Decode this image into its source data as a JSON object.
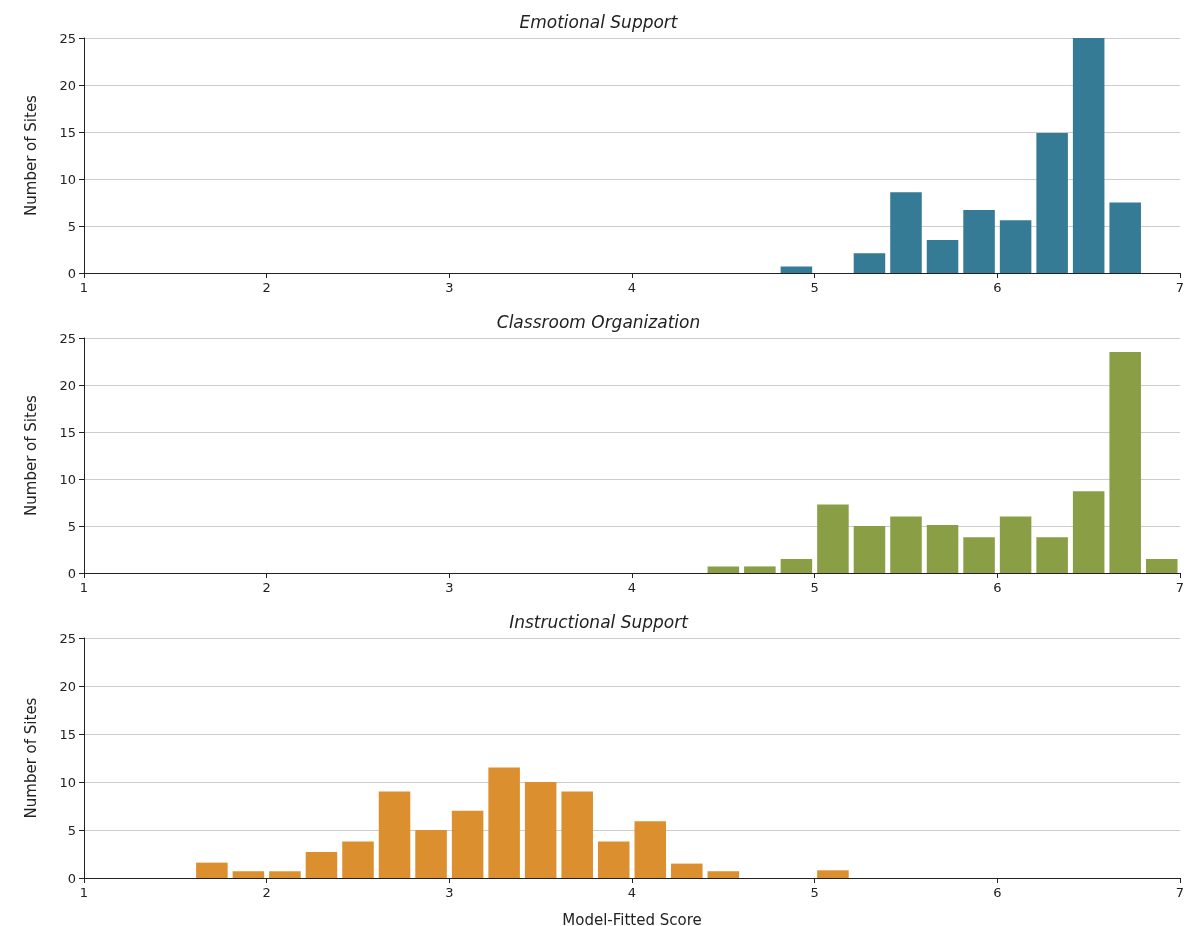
{
  "chart_data": [
    {
      "type": "histogram",
      "title": "Emotional Support",
      "ylabel": "Number of Sites",
      "color": "#357b95",
      "bins": [
        1,
        1.2,
        1.4,
        1.6,
        1.8,
        2,
        2.2,
        2.4,
        2.6,
        2.8,
        3,
        3.2,
        3.4,
        3.6,
        3.8,
        4,
        4.2,
        4.4,
        4.6,
        4.8,
        5,
        5.2,
        5.4,
        5.6,
        5.8,
        6,
        6.2,
        6.4,
        6.6,
        6.8,
        7
      ],
      "values": [
        0,
        0,
        0,
        0,
        0,
        0,
        0,
        0,
        0,
        0,
        0,
        0,
        0,
        0,
        0,
        0,
        0,
        0,
        0,
        0.7,
        0,
        2.1,
        8.6,
        3.5,
        6.7,
        5.6,
        14.9,
        25,
        7.5,
        0
      ],
      "xlim": [
        1,
        7
      ],
      "xticks": [
        1,
        2,
        3,
        4,
        5,
        6,
        7
      ],
      "ylim": [
        0,
        25
      ],
      "yticks": [
        0,
        5,
        10,
        15,
        20,
        25
      ],
      "grid": "y"
    },
    {
      "type": "histogram",
      "title": "Classroom Organization",
      "ylabel": "Number of Sites",
      "color": "#8a9e45",
      "bins": [
        1,
        1.2,
        1.4,
        1.6,
        1.8,
        2,
        2.2,
        2.4,
        2.6,
        2.8,
        3,
        3.2,
        3.4,
        3.6,
        3.8,
        4,
        4.2,
        4.4,
        4.6,
        4.8,
        5,
        5.2,
        5.4,
        5.6,
        5.8,
        6,
        6.2,
        6.4,
        6.6,
        6.8,
        7
      ],
      "values": [
        0,
        0,
        0,
        0,
        0,
        0,
        0,
        0,
        0,
        0,
        0,
        0,
        0,
        0,
        0,
        0,
        0,
        0.7,
        0.7,
        1.5,
        7.3,
        5,
        6,
        5.1,
        3.8,
        6,
        3.8,
        8.7,
        23.5,
        1.5
      ],
      "xlim": [
        1,
        7
      ],
      "xticks": [
        1,
        2,
        3,
        4,
        5,
        6,
        7
      ],
      "ylim": [
        0,
        25
      ],
      "yticks": [
        0,
        5,
        10,
        15,
        20,
        25
      ],
      "grid": "y"
    },
    {
      "type": "histogram",
      "title": "Instructional Support",
      "ylabel": "Number of Sites",
      "xlabel": "Model-Fitted Score",
      "color": "#dc8f2e",
      "bins": [
        1,
        1.2,
        1.4,
        1.6,
        1.8,
        2,
        2.2,
        2.4,
        2.6,
        2.8,
        3,
        3.2,
        3.4,
        3.6,
        3.8,
        4,
        4.2,
        4.4,
        4.6,
        4.8,
        5,
        5.2,
        5.4,
        5.6,
        5.8,
        6,
        6.2,
        6.4,
        6.6,
        6.8,
        7
      ],
      "values": [
        0,
        0,
        0,
        1.6,
        0.7,
        0.7,
        2.7,
        3.8,
        9,
        5,
        7,
        11.5,
        10,
        9,
        3.8,
        5.9,
        1.5,
        0.7,
        0,
        0,
        0.8,
        0,
        0,
        0,
        0,
        0,
        0,
        0,
        0,
        0
      ],
      "xlim": [
        1,
        7
      ],
      "xticks": [
        1,
        2,
        3,
        4,
        5,
        6,
        7
      ],
      "ylim": [
        0,
        25
      ],
      "yticks": [
        0,
        5,
        10,
        15,
        20,
        25
      ],
      "grid": "y"
    }
  ]
}
